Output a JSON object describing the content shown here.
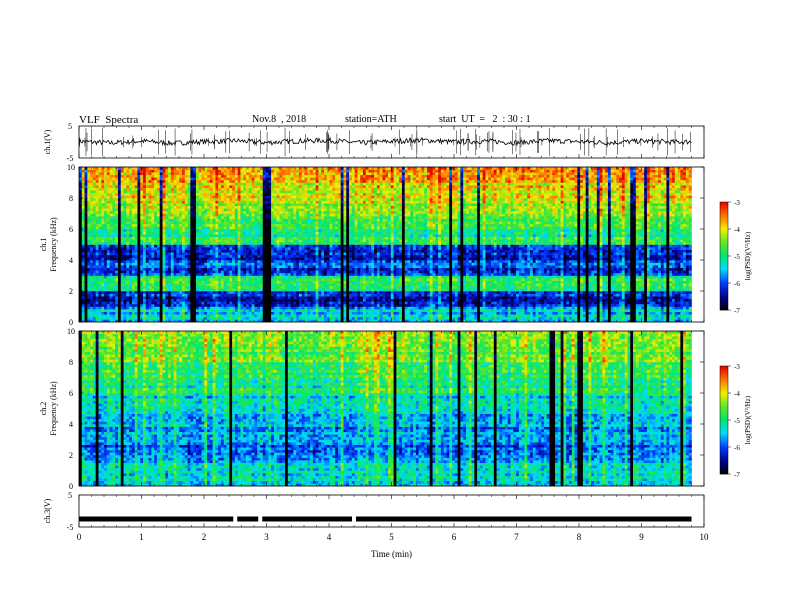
{
  "header": {
    "title": "VLF  Spectra",
    "date": "Nov.8  , 2018",
    "station": "station=ATH",
    "start_time": "start  UT  =   2  : 30 : 1"
  },
  "chart_data": [
    {
      "type": "line",
      "panel": "ch1-waveform",
      "xlabel": "",
      "ylabel": "ch.1(V)",
      "xlim": [
        0,
        10
      ],
      "ylim": [
        -5,
        5
      ],
      "yticks": [
        "5",
        "-5"
      ],
      "series": [
        {
          "color": "#000000",
          "x": [
            0,
            0.5,
            1,
            1.5,
            2,
            2.5,
            3,
            3.5,
            4,
            4.5,
            5,
            5.5,
            6,
            6.5,
            7,
            7.5,
            8,
            8.5,
            9,
            9.5,
            9.8
          ],
          "y": [
            0.2,
            -0.3,
            0.3,
            -0.4,
            0.1,
            0.4,
            -0.2,
            0.3,
            0.5,
            -0.3,
            0.2,
            0.6,
            0.0,
            0.3,
            -0.2,
            0.4,
            0.1,
            -0.2,
            0.3,
            0.0,
            0.1
          ]
        }
      ]
    },
    {
      "type": "heatmap",
      "panel": "ch1-spectrogram",
      "ylabel": "ch.1\nFrequency (kHz)",
      "xlim": [
        0,
        10
      ],
      "ylim": [
        0,
        10
      ],
      "yticks": [
        "0",
        "2",
        "4",
        "6",
        "8",
        "10"
      ],
      "colorbar": {
        "label": "log(PSD)(V²/Hz)",
        "ticks": [
          "-3",
          "-4",
          "-5",
          "-6",
          "-7"
        ],
        "range": [
          -7,
          -3
        ]
      },
      "time_bins_min": [
        0,
        0.5,
        1,
        1.5,
        2,
        2.5,
        3,
        3.5,
        4,
        4.5,
        5,
        5.5,
        6,
        6.5,
        7,
        7.5,
        8,
        8.5,
        9,
        9.5
      ],
      "freq_bins_khz": [
        0,
        1,
        2,
        3,
        4,
        5,
        6,
        7,
        8,
        9
      ],
      "log_psd": [
        [
          -5.5,
          -6.3,
          -5.0,
          -6.0,
          -6.2,
          -5.0,
          -4.6,
          -4.3,
          -4.0,
          -3.8
        ],
        [
          -5.5,
          -6.2,
          -5.0,
          -6.1,
          -6.3,
          -5.0,
          -4.7,
          -4.4,
          -4.1,
          -3.9
        ],
        [
          -5.5,
          -6.3,
          -5.0,
          -6.0,
          -6.1,
          -4.9,
          -4.5,
          -4.2,
          -4.0,
          -3.8
        ],
        [
          -5.5,
          -6.2,
          -5.0,
          -6.2,
          -6.3,
          -5.0,
          -4.7,
          -4.4,
          -4.2,
          -4.0
        ],
        [
          -5.5,
          -6.3,
          -5.0,
          -6.0,
          -6.2,
          -5.0,
          -4.6,
          -4.3,
          -4.0,
          -3.8
        ],
        [
          -5.5,
          -6.2,
          -5.0,
          -6.1,
          -6.2,
          -5.0,
          -4.7,
          -4.4,
          -4.1,
          -3.9
        ],
        [
          -5.5,
          -6.3,
          -5.0,
          -6.0,
          -6.1,
          -4.9,
          -4.6,
          -4.3,
          -4.1,
          -3.9
        ],
        [
          -5.5,
          -6.2,
          -5.0,
          -6.2,
          -6.3,
          -5.0,
          -4.7,
          -4.4,
          -4.1,
          -3.9
        ],
        [
          -5.5,
          -6.3,
          -5.0,
          -6.0,
          -6.2,
          -5.0,
          -4.6,
          -4.3,
          -4.0,
          -3.9
        ],
        [
          -5.5,
          -6.2,
          -5.0,
          -6.1,
          -6.2,
          -4.9,
          -4.6,
          -4.2,
          -4.0,
          -3.7
        ],
        [
          -5.5,
          -6.3,
          -5.0,
          -6.0,
          -6.2,
          -5.0,
          -4.7,
          -4.4,
          -4.1,
          -3.9
        ],
        [
          -5.5,
          -6.2,
          -5.0,
          -6.2,
          -6.3,
          -5.0,
          -4.6,
          -4.3,
          -4.1,
          -3.8
        ],
        [
          -5.5,
          -6.3,
          -5.0,
          -6.0,
          -6.2,
          -5.0,
          -4.7,
          -4.3,
          -4.0,
          -3.8
        ],
        [
          -5.5,
          -6.2,
          -5.0,
          -6.1,
          -6.2,
          -4.9,
          -4.6,
          -4.3,
          -3.9,
          -3.7
        ],
        [
          -5.5,
          -6.3,
          -5.0,
          -6.0,
          -6.1,
          -5.0,
          -4.6,
          -4.3,
          -4.0,
          -3.8
        ],
        [
          -5.5,
          -6.2,
          -5.0,
          -6.2,
          -6.3,
          -5.0,
          -4.7,
          -4.3,
          -4.0,
          -3.8
        ],
        [
          -5.5,
          -6.3,
          -5.0,
          -6.0,
          -6.2,
          -5.0,
          -4.6,
          -4.2,
          -3.9,
          -3.7
        ],
        [
          -5.5,
          -6.2,
          -5.0,
          -6.1,
          -6.2,
          -4.9,
          -4.6,
          -4.3,
          -4.0,
          -3.8
        ],
        [
          -5.5,
          -6.3,
          -5.0,
          -6.0,
          -6.2,
          -5.0,
          -4.7,
          -4.4,
          -4.1,
          -3.9
        ],
        [
          -5.5,
          -6.2,
          -5.0,
          -6.2,
          -6.3,
          -5.0,
          -4.6,
          -4.3,
          -4.0,
          -3.8
        ]
      ]
    },
    {
      "type": "heatmap",
      "panel": "ch2-spectrogram",
      "ylabel": "ch.2\nFrequency (kHz)",
      "xlim": [
        0,
        10
      ],
      "ylim": [
        0,
        10
      ],
      "yticks": [
        "0",
        "2",
        "4",
        "6",
        "8",
        "10"
      ],
      "colorbar": {
        "label": "log(PSD)(V²/Hz)",
        "ticks": [
          "-3",
          "-4",
          "-5",
          "-6",
          "-7"
        ],
        "range": [
          -7,
          -3
        ]
      },
      "time_bins_min": [
        0,
        0.5,
        1,
        1.5,
        2,
        2.5,
        3,
        3.5,
        4,
        4.5,
        5,
        5.5,
        6,
        6.5,
        7,
        7.5,
        8,
        8.5,
        9,
        9.5
      ],
      "freq_bins_khz": [
        0,
        1,
        2,
        3,
        4,
        5,
        6,
        7,
        8,
        9
      ],
      "log_psd": [
        [
          -5.3,
          -5.5,
          -5.8,
          -5.6,
          -5.4,
          -5.3,
          -5.0,
          -4.7,
          -4.5,
          -4.3
        ],
        [
          -5.3,
          -5.5,
          -5.9,
          -5.7,
          -5.5,
          -5.3,
          -5.1,
          -4.8,
          -4.6,
          -4.4
        ],
        [
          -5.3,
          -5.5,
          -5.8,
          -5.6,
          -5.4,
          -5.2,
          -5.0,
          -4.7,
          -4.5,
          -4.3
        ],
        [
          -5.3,
          -5.5,
          -5.9,
          -5.7,
          -5.5,
          -5.3,
          -5.1,
          -4.8,
          -4.6,
          -4.4
        ],
        [
          -5.3,
          -5.5,
          -5.8,
          -5.6,
          -5.4,
          -5.3,
          -5.0,
          -4.7,
          -4.5,
          -4.3
        ],
        [
          -5.3,
          -5.5,
          -5.9,
          -5.7,
          -5.5,
          -5.3,
          -5.1,
          -4.8,
          -4.6,
          -4.4
        ],
        [
          -5.3,
          -5.5,
          -5.8,
          -5.6,
          -5.4,
          -5.2,
          -5.0,
          -4.7,
          -4.5,
          -4.3
        ],
        [
          -5.3,
          -5.5,
          -5.9,
          -5.7,
          -5.5,
          -5.3,
          -5.1,
          -4.8,
          -4.6,
          -4.4
        ],
        [
          -5.3,
          -5.5,
          -5.8,
          -5.6,
          -5.4,
          -5.3,
          -5.0,
          -4.7,
          -4.5,
          -4.3
        ],
        [
          -5.3,
          -5.5,
          -5.9,
          -5.7,
          -5.4,
          -5.2,
          -4.9,
          -4.6,
          -4.4,
          -4.2
        ],
        [
          -5.3,
          -5.5,
          -5.8,
          -5.6,
          -5.4,
          -5.3,
          -5.0,
          -4.7,
          -4.5,
          -4.3
        ],
        [
          -5.3,
          -5.5,
          -5.9,
          -5.7,
          -5.5,
          -5.3,
          -5.1,
          -4.8,
          -4.6,
          -4.4
        ],
        [
          -5.3,
          -5.5,
          -5.8,
          -5.6,
          -5.4,
          -5.2,
          -5.0,
          -4.7,
          -4.5,
          -4.3
        ],
        [
          -5.3,
          -5.5,
          -5.9,
          -5.7,
          -5.5,
          -5.3,
          -5.0,
          -4.7,
          -4.5,
          -4.3
        ],
        [
          -5.3,
          -5.5,
          -5.8,
          -5.6,
          -5.4,
          -5.3,
          -5.0,
          -4.7,
          -4.5,
          -4.3
        ],
        [
          -5.3,
          -5.5,
          -5.9,
          -5.7,
          -5.5,
          -5.3,
          -5.1,
          -4.8,
          -4.6,
          -4.4
        ],
        [
          -5.3,
          -5.5,
          -5.8,
          -5.6,
          -5.4,
          -5.2,
          -4.9,
          -4.6,
          -4.4,
          -4.2
        ],
        [
          -5.3,
          -5.5,
          -5.9,
          -5.7,
          -5.5,
          -5.3,
          -5.1,
          -4.8,
          -4.6,
          -4.4
        ],
        [
          -5.3,
          -5.5,
          -5.8,
          -5.6,
          -5.4,
          -5.3,
          -5.0,
          -4.7,
          -4.5,
          -4.3
        ],
        [
          -5.3,
          -5.5,
          -5.9,
          -5.7,
          -5.5,
          -5.3,
          -5.1,
          -4.8,
          -4.6,
          -4.4
        ]
      ]
    },
    {
      "type": "line",
      "panel": "ch3-waveform",
      "xlabel": "Time  (min)",
      "ylabel": "ch.3(V)",
      "xlim": [
        0,
        10
      ],
      "ylim": [
        -5,
        5
      ],
      "xticks": [
        "0",
        "1",
        "2",
        "3",
        "4",
        "5",
        "6",
        "7",
        "8",
        "9",
        "10"
      ],
      "yticks": [
        "5",
        "-5"
      ],
      "series": [
        {
          "color": "#000000",
          "x": [
            0,
            1,
            2,
            3,
            4,
            5,
            6,
            7,
            8,
            9,
            9.8
          ],
          "y": [
            -2.5,
            -2.5,
            -2.5,
            -2.5,
            -2.5,
            -2.5,
            -2.5,
            -2.5,
            -2.5,
            -2.5,
            -2.5
          ]
        }
      ],
      "gaps_min": [
        2.5,
        2.9,
        4.4
      ]
    }
  ]
}
